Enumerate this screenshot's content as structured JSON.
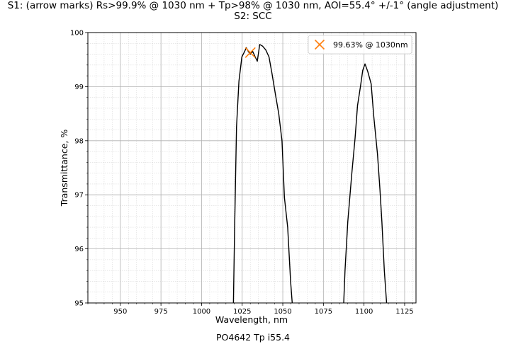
{
  "chart_data": {
    "type": "line",
    "title": "S1: (arrow marks) Rs>99.9% @ 1030 nm + Tp>98% @ 1030 nm, AOI=55.4° +/-1° (angle adjustment)",
    "subtitle": "S2: SCC",
    "xlabel": "Wavelength, nm",
    "ylabel": "Transmittance, %",
    "caption": "PO4642 Tp i55.4",
    "xlim": [
      930,
      1132
    ],
    "ylim": [
      95,
      100
    ],
    "x_ticks": [
      950,
      975,
      1000,
      1025,
      1050,
      1075,
      1100,
      1125
    ],
    "y_ticks": [
      95,
      96,
      97,
      98,
      99,
      100
    ],
    "grid": true,
    "minor_grid": true,
    "legend_position": "top-right",
    "series": [
      {
        "color": "#000000",
        "points": [
          [
            1019.6,
            95.0
          ],
          [
            1020.3,
            96.3
          ],
          [
            1021.5,
            98.25
          ],
          [
            1023.0,
            99.1
          ],
          [
            1024.8,
            99.55
          ],
          [
            1026.5,
            99.65
          ],
          [
            1027.5,
            99.72
          ],
          [
            1028.8,
            99.65
          ],
          [
            1030.0,
            99.6
          ],
          [
            1031.5,
            99.65
          ],
          [
            1033.0,
            99.55
          ],
          [
            1034.3,
            99.47
          ],
          [
            1035.8,
            99.78
          ],
          [
            1037.5,
            99.75
          ],
          [
            1039.5,
            99.68
          ],
          [
            1041.5,
            99.55
          ],
          [
            1043.3,
            99.25
          ],
          [
            1045.5,
            98.85
          ],
          [
            1047.5,
            98.5
          ],
          [
            1049.5,
            98.0
          ],
          [
            1051.0,
            96.95
          ],
          [
            1053.0,
            96.4
          ],
          [
            1054.8,
            95.4
          ],
          [
            1055.8,
            95.0
          ]
        ]
      },
      {
        "color": "#000000",
        "points": [
          [
            1087.5,
            95.0
          ],
          [
            1088.3,
            95.6
          ],
          [
            1090.0,
            96.5
          ],
          [
            1092.5,
            97.4
          ],
          [
            1094.5,
            98.05
          ],
          [
            1096.0,
            98.65
          ],
          [
            1097.8,
            99.0
          ],
          [
            1099.2,
            99.3
          ],
          [
            1100.6,
            99.42
          ],
          [
            1102.3,
            99.28
          ],
          [
            1104.4,
            99.05
          ],
          [
            1106.0,
            98.45
          ],
          [
            1108.3,
            97.75
          ],
          [
            1109.8,
            97.1
          ],
          [
            1111.0,
            96.5
          ],
          [
            1112.5,
            95.6
          ],
          [
            1113.9,
            95.0
          ]
        ]
      }
    ],
    "marker": {
      "label": "99.63% @ 1030nm",
      "x": 1030,
      "y": 99.63,
      "symbol": "x",
      "color": "#ff7f0e"
    }
  }
}
